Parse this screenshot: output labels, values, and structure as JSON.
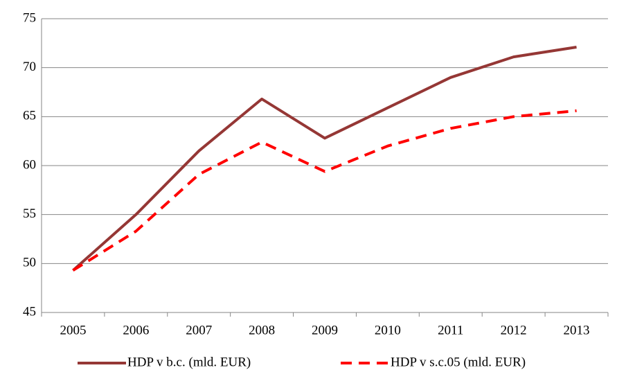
{
  "chart_data": {
    "type": "line",
    "categories": [
      "2005",
      "2006",
      "2007",
      "2008",
      "2009",
      "2010",
      "2011",
      "2012",
      "2013"
    ],
    "series": [
      {
        "name": "HDP v b.c. (mld. EUR)",
        "color": "#953735",
        "dash": false,
        "values": [
          49.3,
          55.0,
          61.5,
          66.8,
          62.8,
          65.9,
          69.0,
          71.1,
          72.1
        ]
      },
      {
        "name": "HDP v s.c.05 (mld. EUR)",
        "color": "#ff0000",
        "dash": true,
        "values": [
          49.3,
          53.3,
          59.1,
          62.4,
          59.4,
          62.0,
          63.8,
          65.0,
          65.6
        ]
      }
    ],
    "ylim": [
      45,
      75
    ],
    "yticks": [
      45,
      50,
      55,
      60,
      65,
      70,
      75
    ],
    "grid": true,
    "legend": "bottom"
  }
}
